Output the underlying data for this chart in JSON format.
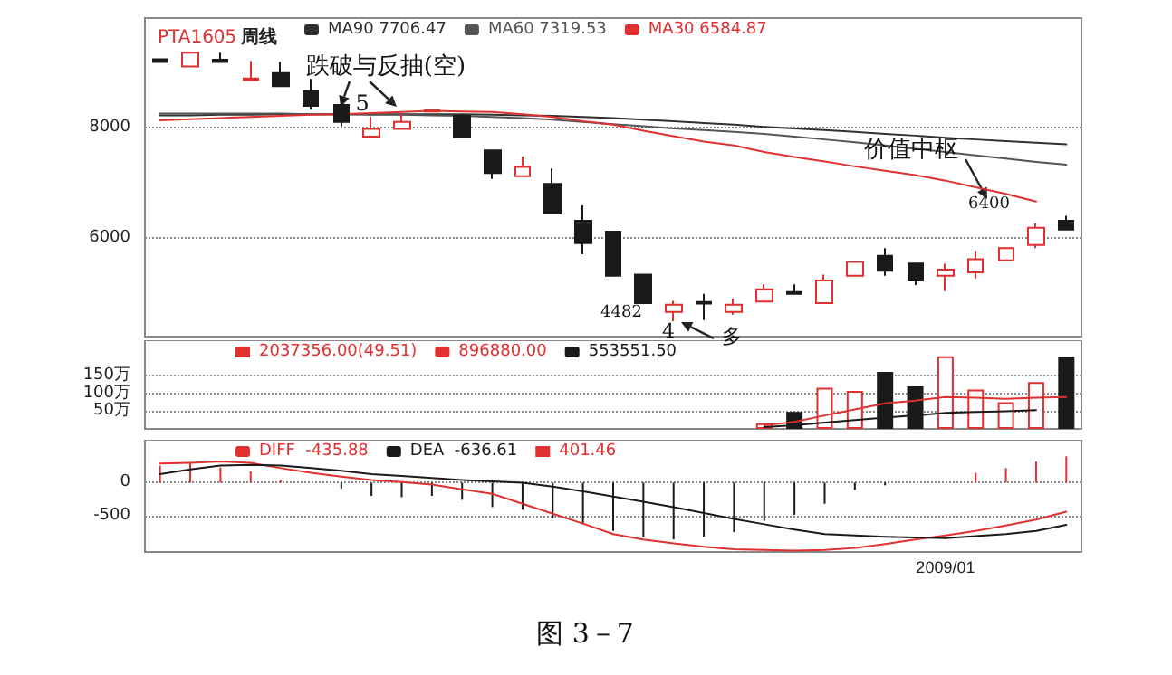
{
  "chart_data": [
    {
      "type": "candlestick",
      "title": "PTA1605",
      "subtitle": "周线",
      "categories": [
        null,
        null,
        null,
        null,
        null,
        null,
        null,
        null,
        null,
        null,
        null,
        null,
        null,
        null,
        null,
        null,
        null,
        null,
        null,
        null,
        null,
        null,
        null,
        null,
        null,
        null,
        null,
        null,
        null,
        null,
        null
      ],
      "ohlc": [
        [
          9250,
          9250,
          9200,
          9200
        ],
        [
          9120,
          9370,
          9120,
          9370
        ],
        [
          9240,
          9370,
          9200,
          9200
        ],
        [
          8870,
          9220,
          8870,
          8900
        ],
        [
          9000,
          9200,
          8760,
          8760
        ],
        [
          8670,
          8890,
          8330,
          8400
        ],
        [
          8420,
          8530,
          8030,
          8110
        ],
        [
          7840,
          8200,
          7840,
          7980
        ],
        [
          7980,
          8260,
          7980,
          8110
        ],
        [
          8300,
          8330,
          8290,
          8320
        ],
        [
          8220,
          8250,
          7830,
          7830
        ],
        [
          7590,
          7590,
          7070,
          7180
        ],
        [
          7120,
          7480,
          7120,
          7290
        ],
        [
          6980,
          7260,
          6440,
          6440
        ],
        [
          6310,
          6590,
          5700,
          5900
        ],
        [
          6110,
          6110,
          5310,
          5310
        ],
        [
          5330,
          5330,
          4810,
          4810
        ],
        [
          4650,
          4850,
          4482,
          4780
        ],
        [
          4830,
          4980,
          4500,
          4800
        ],
        [
          4650,
          4890,
          4600,
          4780
        ],
        [
          4840,
          5150,
          4840,
          5060
        ],
        [
          5010,
          5150,
          4980,
          4980
        ],
        [
          4810,
          5330,
          4810,
          5220
        ],
        [
          5310,
          5560,
          5310,
          5560
        ],
        [
          5670,
          5810,
          5310,
          5400
        ],
        [
          5530,
          5530,
          5140,
          5220
        ],
        [
          5310,
          5530,
          5030,
          5420
        ],
        [
          5370,
          5760,
          5260,
          5610
        ],
        [
          5590,
          5810,
          5590,
          5810
        ],
        [
          5870,
          6260,
          5810,
          6180
        ],
        [
          6310,
          6400,
          6150,
          6150
        ]
      ],
      "series": [
        {
          "type": "line",
          "name": "MA90 7706.47",
          "color": "#303030",
          "values": [
            8230,
            8230,
            8240,
            8240,
            8250,
            8250,
            8250,
            8250,
            8250,
            8250,
            8250,
            8240,
            8230,
            8220,
            8200,
            8180,
            8150,
            8120,
            8090,
            8060,
            8020,
            7990,
            7960,
            7930,
            7890,
            7860,
            7820,
            7790,
            7760,
            7730,
            7700
          ]
        },
        {
          "type": "line",
          "name": "MA60 7319.53",
          "color": "#555555",
          "values": [
            8260,
            8260,
            8260,
            8260,
            8260,
            8250,
            8250,
            8240,
            8240,
            8230,
            8220,
            8200,
            8180,
            8150,
            8110,
            8070,
            8030,
            7990,
            7960,
            7930,
            7890,
            7840,
            7790,
            7740,
            7680,
            7620,
            7560,
            7500,
            7440,
            7380,
            7330
          ]
        },
        {
          "type": "line",
          "name": "MA30 6584.87",
          "color": "#e03030",
          "values": [
            8140,
            8160,
            8180,
            8200,
            8220,
            8240,
            8250,
            8270,
            8290,
            8310,
            8300,
            8290,
            8250,
            8200,
            8120,
            8060,
            7950,
            7850,
            7750,
            7680,
            7560,
            7470,
            7390,
            7300,
            7220,
            7140,
            7040,
            6920,
            6800,
            6660,
            null
          ]
        }
      ],
      "ylim": [
        4200,
        10000
      ],
      "yticks": [
        6000,
        8000
      ],
      "grid": "y",
      "legend": "top left",
      "tick_labels": "y",
      "annotations": [
        "跌破与反抽(空)",
        "5",
        "4482",
        "4",
        "多",
        "价值中枢",
        "6400"
      ]
    },
    {
      "type": "bar",
      "categories": [
        null,
        null,
        null,
        null,
        null,
        null,
        null,
        null,
        null,
        null,
        null,
        null,
        null,
        null,
        null,
        null,
        null,
        null,
        null,
        null,
        null,
        null,
        null,
        null,
        null,
        null,
        null,
        null,
        null,
        null,
        null
      ],
      "series": [
        {
          "type": "bar",
          "name": "2037356.00(49.51)",
          "color": "#e03030",
          "values": [
            null,
            null,
            null,
            null,
            null,
            null,
            null,
            null,
            null,
            null,
            null,
            null,
            null,
            null,
            null,
            null,
            null,
            null,
            null,
            null,
            16,
            48,
            116,
            107,
            161,
            120,
            205,
            111,
            75,
            132,
            204
          ],
          "colors": [
            "#e03030",
            "#e03030",
            "#e03030",
            "#e03030",
            "#e03030",
            "#e03030",
            "#e03030",
            "#e03030",
            "#e03030",
            "#e03030",
            "#e03030",
            "#e03030",
            "#e03030",
            "#e03030",
            "#e03030",
            "#e03030",
            "#e03030",
            "#e03030",
            "#e03030",
            "#e03030",
            "#e03030",
            "#1a1a1a",
            "#e03030",
            "#e03030",
            "#1a1a1a",
            "#1a1a1a",
            "#e03030",
            "#e03030",
            "#e03030",
            "#e03030",
            "#1a1a1a"
          ]
        },
        {
          "type": "line",
          "name": "896880.00",
          "color": "#e03030",
          "values": [
            null,
            null,
            null,
            null,
            null,
            null,
            null,
            null,
            null,
            null,
            null,
            null,
            null,
            null,
            null,
            null,
            null,
            null,
            null,
            null,
            10,
            20,
            38,
            55,
            72,
            80,
            90,
            88,
            85,
            88,
            90
          ]
        },
        {
          "type": "line",
          "name": "553551.50",
          "color": "#1a1a1a",
          "values": [
            null,
            null,
            null,
            null,
            null,
            null,
            null,
            null,
            null,
            null,
            null,
            null,
            null,
            null,
            null,
            null,
            null,
            null,
            null,
            null,
            5,
            10,
            18,
            25,
            32,
            38,
            45,
            48,
            50,
            53,
            null
          ]
        }
      ],
      "ylim": [
        0,
        250
      ],
      "yticks": [
        {
          "value": 50,
          "label": "50万"
        },
        {
          "value": 100,
          "label": "100万"
        },
        {
          "value": 150,
          "label": "150万"
        }
      ],
      "grid": "y",
      "legend": "top left",
      "tick_labels": "y"
    },
    {
      "type": "bar",
      "categories": [
        null,
        null,
        null,
        null,
        null,
        null,
        null,
        null,
        null,
        null,
        null,
        null,
        null,
        null,
        null,
        null,
        null,
        null,
        null,
        null,
        null,
        null,
        null,
        null,
        null,
        null,
        "2009/01",
        null,
        null,
        null,
        null
      ],
      "series": [
        {
          "type": "line",
          "name": "DIFF  -435.88",
          "color": "#e03030",
          "values": [
            290,
            300,
            320,
            300,
            220,
            150,
            90,
            40,
            10,
            -30,
            -100,
            -170,
            -320,
            -470,
            -620,
            -780,
            -860,
            -920,
            -970,
            -1010,
            -1020,
            -1030,
            -1020,
            -990,
            -930,
            -860,
            -800,
            -730,
            -650,
            -560,
            -440
          ]
        },
        {
          "type": "line",
          "name": "DEA  -636.61",
          "color": "#1a1a1a",
          "values": [
            130,
            200,
            260,
            270,
            260,
            220,
            180,
            130,
            100,
            70,
            40,
            20,
            0,
            -60,
            -130,
            -210,
            -290,
            -370,
            -460,
            -550,
            -630,
            -710,
            -780,
            -800,
            -820,
            -830,
            -840,
            -810,
            -780,
            -730,
            -640
          ]
        },
        {
          "type": "bar",
          "name": "401.46",
          "color": "#e03030",
          "values": [
            260,
            300,
            230,
            170,
            40,
            0,
            -90,
            -200,
            -220,
            -200,
            -260,
            -370,
            -410,
            -540,
            -630,
            -730,
            -820,
            -860,
            -820,
            -750,
            -580,
            -490,
            -320,
            -110,
            -40,
            0,
            0,
            150,
            220,
            320,
            400
          ],
          "colors": [
            "#e03030",
            "#e03030",
            "#e03030",
            "#e03030",
            "#e03030",
            "#e03030",
            "#1a1a1a",
            "#1a1a1a",
            "#1a1a1a",
            "#1a1a1a",
            "#1a1a1a",
            "#1a1a1a",
            "#1a1a1a",
            "#1a1a1a",
            "#1a1a1a",
            "#1a1a1a",
            "#1a1a1a",
            "#1a1a1a",
            "#1a1a1a",
            "#1a1a1a",
            "#1a1a1a",
            "#1a1a1a",
            "#1a1a1a",
            "#1a1a1a",
            "#1a1a1a",
            "#1a1a1a",
            "#1a1a1a",
            "#e03030",
            "#e03030",
            "#e03030",
            "#e03030"
          ]
        }
      ],
      "ylim": [
        -1050,
        650
      ],
      "yticks": [
        -500,
        0
      ],
      "grid": "y",
      "legend": "top left",
      "annotations": [
        "图 3－7"
      ]
    }
  ]
}
